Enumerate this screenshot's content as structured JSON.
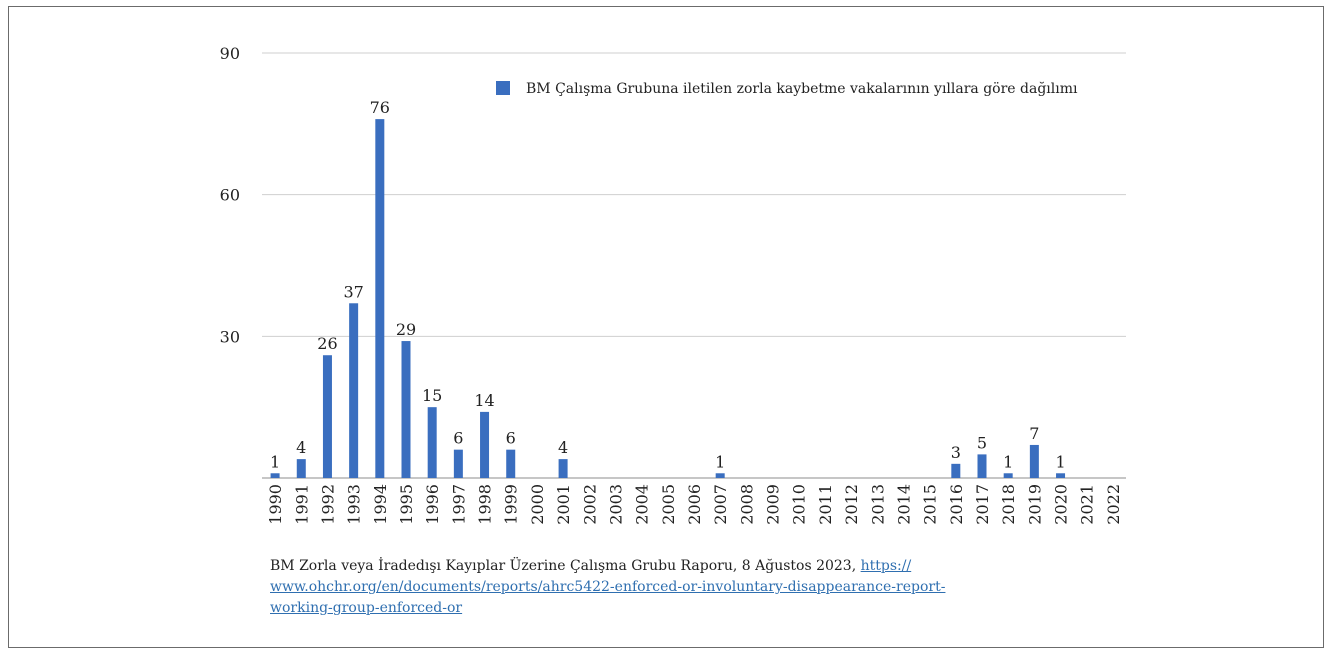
{
  "chart_data": {
    "type": "bar",
    "categories": [
      "1990",
      "1991",
      "1992",
      "1993",
      "1994",
      "1995",
      "1996",
      "1997",
      "1998",
      "1999",
      "2000",
      "2001",
      "2002",
      "2003",
      "2004",
      "2005",
      "2006",
      "2007",
      "2008",
      "2009",
      "2010",
      "2011",
      "2012",
      "2013",
      "2014",
      "2015",
      "2016",
      "2017",
      "2018",
      "2019",
      "2020",
      "2021",
      "2022"
    ],
    "series": [
      {
        "name": "BM Çalışma Grubuna iletilen zorla kaybetme vakalarının yıllara göre dağılımı",
        "values": [
          1,
          4,
          26,
          37,
          76,
          29,
          15,
          6,
          14,
          6,
          0,
          4,
          0,
          0,
          0,
          0,
          0,
          1,
          0,
          0,
          0,
          0,
          0,
          0,
          0,
          0,
          3,
          5,
          1,
          7,
          1,
          0,
          0
        ],
        "data_labels": [
          "1",
          "4",
          "26",
          "37",
          "76",
          "29",
          "15",
          "6",
          "14",
          "6",
          "",
          "4",
          "",
          "",
          "",
          "",
          "",
          "1",
          "",
          "",
          "",
          "",
          "",
          "",
          "",
          "",
          "3",
          "5",
          "1",
          "7",
          "1",
          "",
          ""
        ]
      }
    ],
    "yticks": [
      "90",
      "60",
      "30"
    ],
    "ylim": [
      0,
      90
    ],
    "grid": true,
    "legend_position": "top-right",
    "bar_color": "#3a6ebf"
  },
  "source": {
    "text": "BM Zorla veya İradedışı Kayıplar Üzerine Çalışma Grubu Raporu, 8 Ağustos 2023, ",
    "link": "https://www.ohchr.org/en/documents/reports/ahrc5422-enforced-or-involuntary-disappearance-report-working-group-enforced-or",
    "link_line1": "https://",
    "link_line2": "www.ohchr.org/en/documents/reports/ahrc5422-enforced-or-involuntary-disappearance-report-",
    "link_line3": "working-group-enforced-or"
  }
}
